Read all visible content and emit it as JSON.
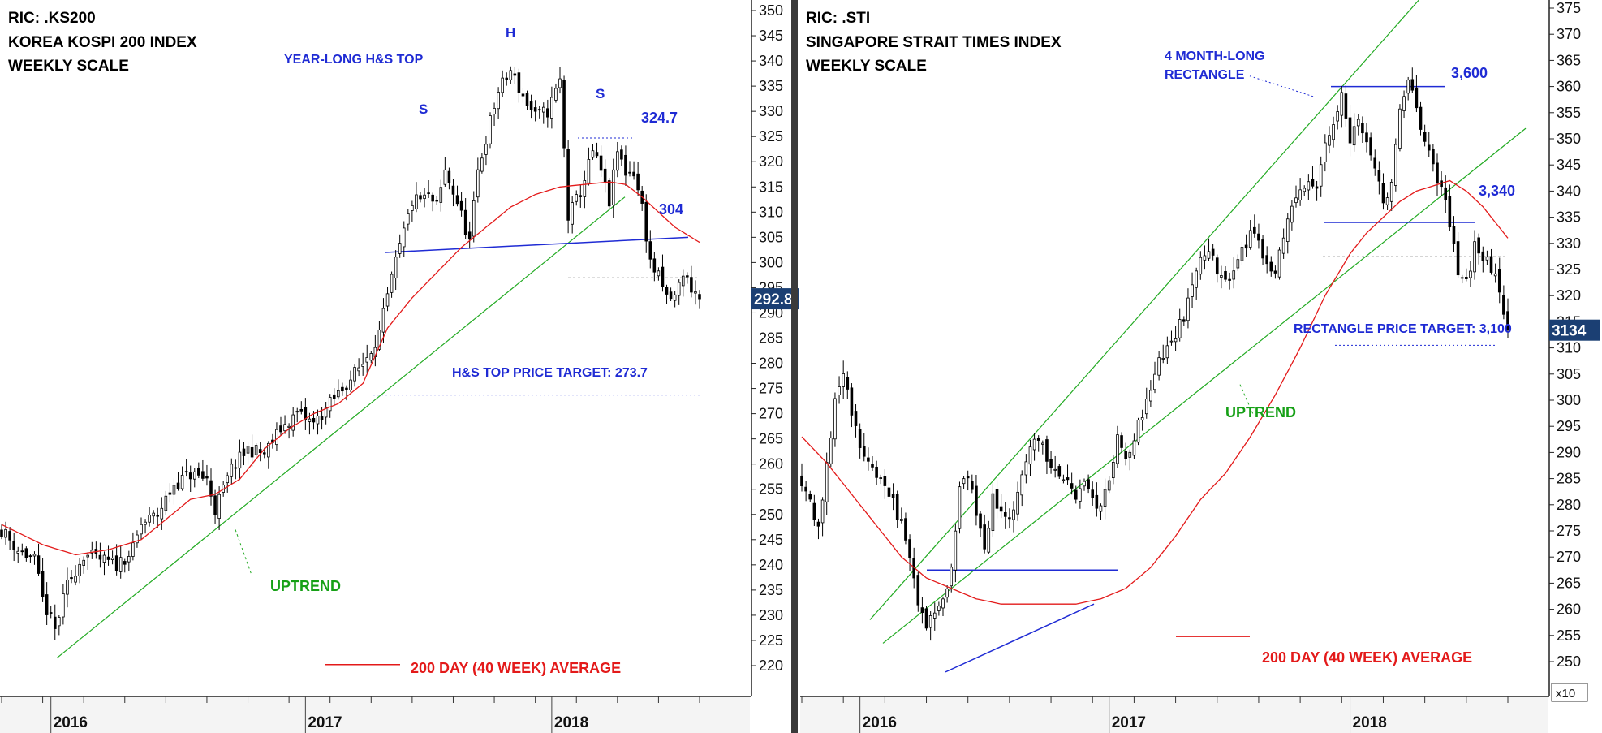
{
  "chart_data": [
    {
      "type": "candlestick",
      "ric": "RIC: .KS200",
      "title": "KOREA KOSPI 200 INDEX",
      "subtitle": "WEEKLY SCALE",
      "y_ticks": [
        "220",
        "225",
        "230",
        "235",
        "240",
        "245",
        "250",
        "255",
        "260",
        "265",
        "270",
        "275",
        "280",
        "285",
        "290",
        "295",
        "300",
        "305",
        "310",
        "315",
        "320",
        "325",
        "330",
        "335",
        "340",
        "345",
        "350"
      ],
      "ylim": [
        216,
        353
      ],
      "x_labels": [
        "2016",
        "2017",
        "2018"
      ],
      "last_price_label": "292.8",
      "last_price": 292.8,
      "annotations": {
        "pattern": "YEAR-LONG H&S TOP",
        "head": "H",
        "left_shoulder": "S",
        "right_shoulder": "S",
        "level_high": "324.7",
        "neckline": "304",
        "target": "H&S TOP PRICE TARGET: 273.7",
        "trend": "UPTREND",
        "ma_legend": "200 DAY (40 WEEK) AVERAGE"
      },
      "levels": {
        "high": 324.7,
        "neckline": 304,
        "target": 273.7
      },
      "close_path": [
        [
          0,
          247
        ],
        [
          4,
          243
        ],
        [
          8,
          241
        ],
        [
          10,
          233
        ],
        [
          13,
          227
        ],
        [
          16,
          236
        ],
        [
          20,
          242
        ],
        [
          24,
          241
        ],
        [
          28,
          240
        ],
        [
          32,
          243
        ],
        [
          34,
          248
        ],
        [
          38,
          250
        ],
        [
          42,
          256
        ],
        [
          46,
          258
        ],
        [
          50,
          257
        ],
        [
          52,
          251
        ],
        [
          56,
          259
        ],
        [
          60,
          263
        ],
        [
          64,
          262
        ],
        [
          68,
          267
        ],
        [
          72,
          270
        ],
        [
          76,
          268
        ],
        [
          80,
          272
        ],
        [
          84,
          276
        ],
        [
          88,
          280
        ],
        [
          92,
          286
        ],
        [
          96,
          300
        ],
        [
          100,
          312
        ],
        [
          104,
          313
        ],
        [
          106,
          311
        ],
        [
          108,
          318
        ],
        [
          111,
          312
        ],
        [
          114,
          304
        ],
        [
          116,
          318
        ],
        [
          119,
          328
        ],
        [
          121,
          334
        ],
        [
          124,
          338
        ],
        [
          127,
          333
        ],
        [
          130,
          329
        ],
        [
          133,
          330
        ],
        [
          136,
          336
        ],
        [
          138,
          309
        ],
        [
          141,
          314
        ],
        [
          144,
          322
        ],
        [
          146,
          318
        ],
        [
          148,
          312
        ],
        [
          150,
          322
        ],
        [
          152,
          318
        ],
        [
          154,
          318
        ],
        [
          156,
          311
        ],
        [
          158,
          300
        ],
        [
          160,
          297
        ],
        [
          162,
          293
        ],
        [
          164,
          293
        ],
        [
          166,
          298
        ],
        [
          168,
          295
        ],
        [
          170,
          292.8
        ]
      ],
      "ma_path": [
        [
          0,
          248
        ],
        [
          10,
          244
        ],
        [
          18,
          242
        ],
        [
          26,
          243
        ],
        [
          34,
          245
        ],
        [
          40,
          249
        ],
        [
          46,
          253
        ],
        [
          52,
          254
        ],
        [
          58,
          257
        ],
        [
          64,
          263
        ],
        [
          70,
          267
        ],
        [
          76,
          270
        ],
        [
          82,
          272
        ],
        [
          88,
          276
        ],
        [
          94,
          287
        ],
        [
          100,
          293
        ],
        [
          106,
          298
        ],
        [
          112,
          303
        ],
        [
          118,
          307
        ],
        [
          124,
          311
        ],
        [
          130,
          313.5
        ],
        [
          136,
          315
        ],
        [
          142,
          315.5
        ],
        [
          148,
          316
        ],
        [
          152,
          315.5
        ],
        [
          156,
          313
        ],
        [
          160,
          310
        ],
        [
          164,
          307
        ],
        [
          168,
          305
        ],
        [
          170,
          304
        ]
      ]
    },
    {
      "type": "candlestick",
      "ric": "RIC: .STI",
      "title": "SINGAPORE STRAIT TIMES INDEX",
      "subtitle": "WEEKLY SCALE",
      "y_ticks": [
        "250",
        "255",
        "260",
        "265",
        "270",
        "275",
        "280",
        "285",
        "290",
        "295",
        "300",
        "305",
        "310",
        "315",
        "320",
        "325",
        "330",
        "335",
        "340",
        "345",
        "350",
        "355",
        "360",
        "365",
        "370",
        "375"
      ],
      "ylim": [
        247,
        378
      ],
      "y_multiplier": "x10",
      "x_labels": [
        "2016",
        "2017",
        "2018"
      ],
      "last_price_label": "3134",
      "last_price": 313.4,
      "annotations": {
        "pattern": "4 MONTH-LONG\nRECTANGLE",
        "level_high": "3,600",
        "level_low": "3,340",
        "target": "RECTANGLE PRICE TARGET: 3,100",
        "trend": "UPTREND",
        "ma_legend": "200 DAY (40 WEEK) AVERAGE"
      },
      "levels": {
        "high": 360,
        "low": 334,
        "target": 310
      },
      "close_path": [
        [
          0,
          285
        ],
        [
          4,
          276
        ],
        [
          8,
          300
        ],
        [
          10,
          306
        ],
        [
          12,
          296
        ],
        [
          16,
          288
        ],
        [
          20,
          285
        ],
        [
          22,
          280
        ],
        [
          24,
          276
        ],
        [
          26,
          270
        ],
        [
          28,
          262
        ],
        [
          30,
          256
        ],
        [
          32,
          260
        ],
        [
          34,
          262
        ],
        [
          36,
          268
        ],
        [
          38,
          283
        ],
        [
          40,
          286
        ],
        [
          42,
          278
        ],
        [
          44,
          272
        ],
        [
          46,
          281
        ],
        [
          48,
          279
        ],
        [
          50,
          276
        ],
        [
          52,
          281
        ],
        [
          54,
          289
        ],
        [
          56,
          292
        ],
        [
          58,
          291
        ],
        [
          60,
          287
        ],
        [
          62,
          286
        ],
        [
          64,
          284
        ],
        [
          66,
          282
        ],
        [
          68,
          285
        ],
        [
          70,
          281
        ],
        [
          72,
          280
        ],
        [
          74,
          285
        ],
        [
          76,
          293
        ],
        [
          78,
          290
        ],
        [
          80,
          292
        ],
        [
          82,
          298
        ],
        [
          84,
          303
        ],
        [
          86,
          307
        ],
        [
          88,
          310
        ],
        [
          90,
          313
        ],
        [
          92,
          316
        ],
        [
          94,
          322
        ],
        [
          96,
          326
        ],
        [
          98,
          328
        ],
        [
          100,
          325
        ],
        [
          102,
          322
        ],
        [
          104,
          326
        ],
        [
          106,
          328
        ],
        [
          108,
          332
        ],
        [
          110,
          330
        ],
        [
          112,
          327
        ],
        [
          114,
          325
        ],
        [
          116,
          332
        ],
        [
          118,
          338
        ],
        [
          120,
          340
        ],
        [
          122,
          342
        ],
        [
          124,
          340
        ],
        [
          126,
          348
        ],
        [
          128,
          354
        ],
        [
          130,
          358
        ],
        [
          132,
          348
        ],
        [
          134,
          355
        ],
        [
          136,
          350
        ],
        [
          138,
          345
        ],
        [
          140,
          338
        ],
        [
          142,
          342
        ],
        [
          144,
          355
        ],
        [
          146,
          360
        ],
        [
          148,
          356
        ],
        [
          150,
          350
        ],
        [
          152,
          344
        ],
        [
          154,
          340
        ],
        [
          156,
          334
        ],
        [
          158,
          324
        ],
        [
          160,
          322
        ],
        [
          162,
          330
        ],
        [
          164,
          328
        ],
        [
          166,
          324
        ],
        [
          168,
          322
        ],
        [
          170,
          313.4
        ]
      ],
      "ma_path": [
        [
          0,
          293
        ],
        [
          6,
          288
        ],
        [
          12,
          282
        ],
        [
          18,
          276
        ],
        [
          24,
          270
        ],
        [
          30,
          266
        ],
        [
          36,
          264
        ],
        [
          42,
          262
        ],
        [
          48,
          261
        ],
        [
          54,
          261
        ],
        [
          60,
          261
        ],
        [
          66,
          261
        ],
        [
          72,
          262
        ],
        [
          78,
          264
        ],
        [
          84,
          268
        ],
        [
          90,
          274
        ],
        [
          96,
          281
        ],
        [
          102,
          286
        ],
        [
          108,
          293
        ],
        [
          114,
          301
        ],
        [
          120,
          310
        ],
        [
          126,
          320
        ],
        [
          132,
          328
        ],
        [
          136,
          332
        ],
        [
          140,
          335
        ],
        [
          144,
          338
        ],
        [
          148,
          340
        ],
        [
          152,
          341
        ],
        [
          156,
          342
        ],
        [
          160,
          340
        ],
        [
          164,
          337
        ],
        [
          168,
          333
        ],
        [
          170,
          331
        ]
      ]
    }
  ]
}
